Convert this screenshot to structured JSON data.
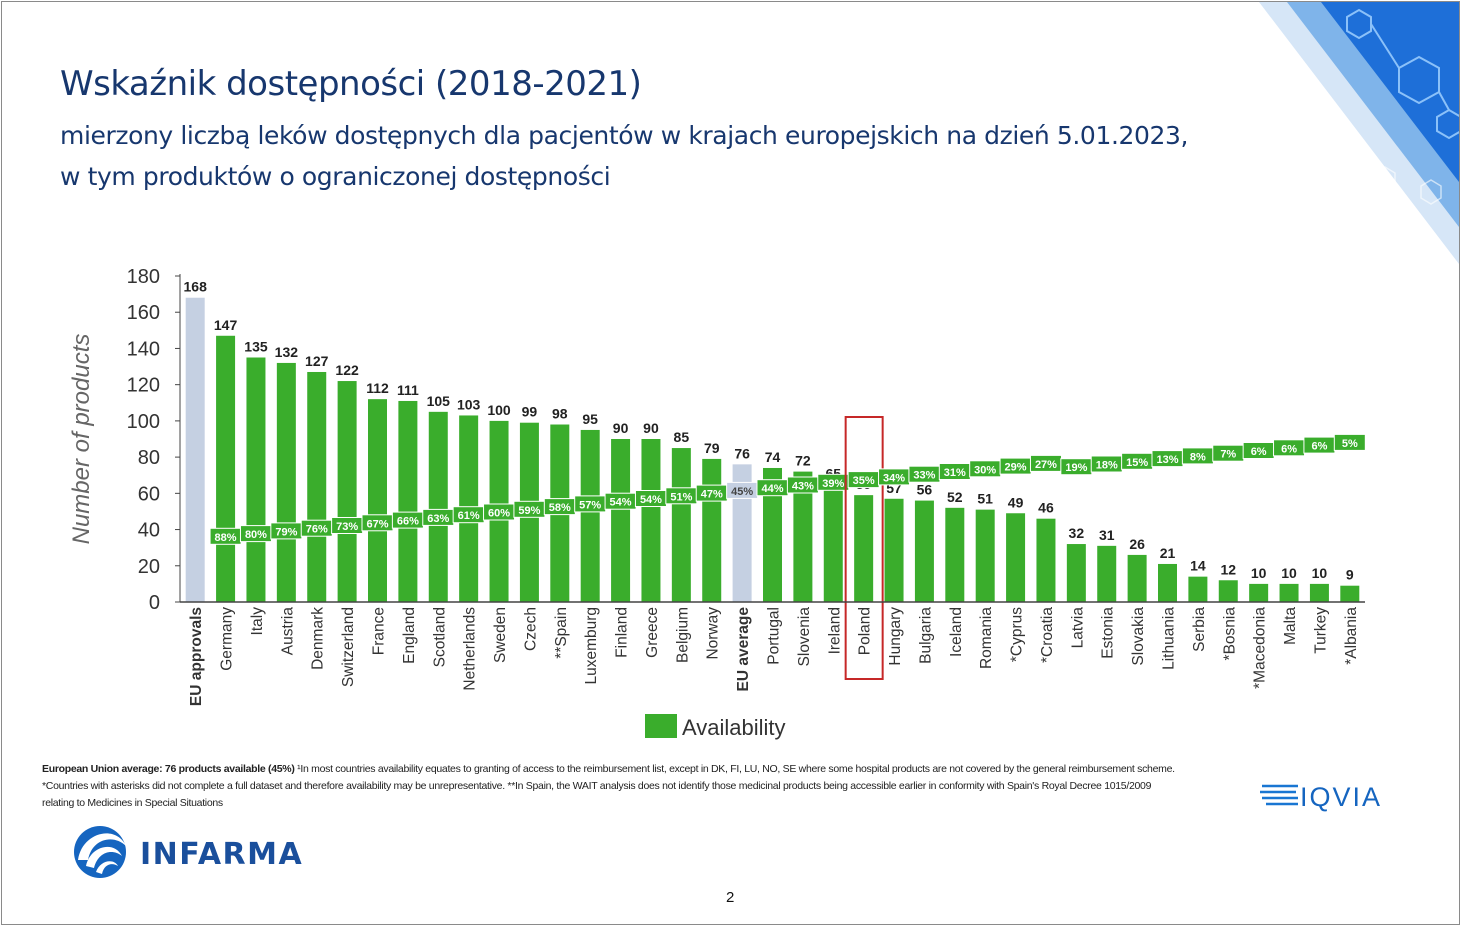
{
  "title": "Wskaźnik dostępności (2018-2021)",
  "subtitle_line1": "mierzony liczbą leków dostępnych dla pacjentów w krajach europejskich na dzień 5.01.2023,",
  "subtitle_line2": "w tym produktów o ograniczonej dostępności",
  "footnote": {
    "bold": "European Union average: 76 products available (45%)",
    "line1_rest": " ¹In most countries availability equates to granting of access to the reimbursement list, except in DK, FI, LU, NO, SE where some hospital products are not covered by the general reimbursement scheme.",
    "line2": "*Countries with asterisks did not complete a full dataset and therefore availability may be unrepresentative. **In Spain, the WAIT analysis does not identify those medicinal products being accessible earlier in conformity with Spain's Royal Decree 1015/2009",
    "line3": "relating to Medicines in Special Situations"
  },
  "logos": {
    "infarma": "INFARMA",
    "iqvia": "IQVIA"
  },
  "page_number": "2",
  "colors": {
    "title": "#17376e",
    "bar_green": "#3aad2c",
    "bar_reference": "#c5d0e2",
    "highlight_box": "#c62828",
    "corner_blue": "#1e6fd8"
  },
  "chart_data": {
    "type": "bar",
    "ylabel": "Number of products",
    "ylim": [
      0,
      180
    ],
    "yticks": [
      0,
      20,
      40,
      60,
      80,
      100,
      120,
      140,
      160,
      180
    ],
    "legend": "Availability",
    "legend_position": "bottom",
    "highlighted_category": "Poland",
    "categories": [
      "EU approvals",
      "Germany",
      "Italy",
      "Austria",
      "Denmark",
      "Switzerland",
      "France",
      "England",
      "Scotland",
      "Netherlands",
      "Sweden",
      "Czech",
      "**Spain",
      "Luxemburg",
      "Finland",
      "Greece",
      "Belgium",
      "Norway",
      "EU average",
      "Portugal",
      "Slovenia",
      "Ireland",
      "Poland",
      "Hungary",
      "Bulgaria",
      "Iceland",
      "Romania",
      "*Cyprus",
      "*Croatia",
      "Latvia",
      "Estonia",
      "Slovakia",
      "Lithuania",
      "Serbia",
      "*Bosnia",
      "*Macedonia",
      "Malta",
      "Turkey",
      "*Albania"
    ],
    "values": [
      168,
      147,
      135,
      132,
      127,
      122,
      112,
      111,
      105,
      103,
      100,
      99,
      98,
      95,
      90,
      90,
      85,
      79,
      76,
      74,
      72,
      65,
      59,
      57,
      56,
      52,
      51,
      49,
      46,
      32,
      31,
      26,
      21,
      14,
      12,
      10,
      10,
      10,
      9
    ],
    "percentages": [
      null,
      "88%",
      "80%",
      "79%",
      "76%",
      "73%",
      "67%",
      "66%",
      "63%",
      "61%",
      "60%",
      "59%",
      "58%",
      "57%",
      "54%",
      "54%",
      "51%",
      "47%",
      "45%",
      "44%",
      "43%",
      "39%",
      "35%",
      "34%",
      "33%",
      "31%",
      "30%",
      "29%",
      "27%",
      "19%",
      "18%",
      "15%",
      "13%",
      "8%",
      "7%",
      "6%",
      "6%",
      "6%",
      "5%"
    ],
    "reference_bars": [
      "EU approvals",
      "EU average"
    ]
  }
}
